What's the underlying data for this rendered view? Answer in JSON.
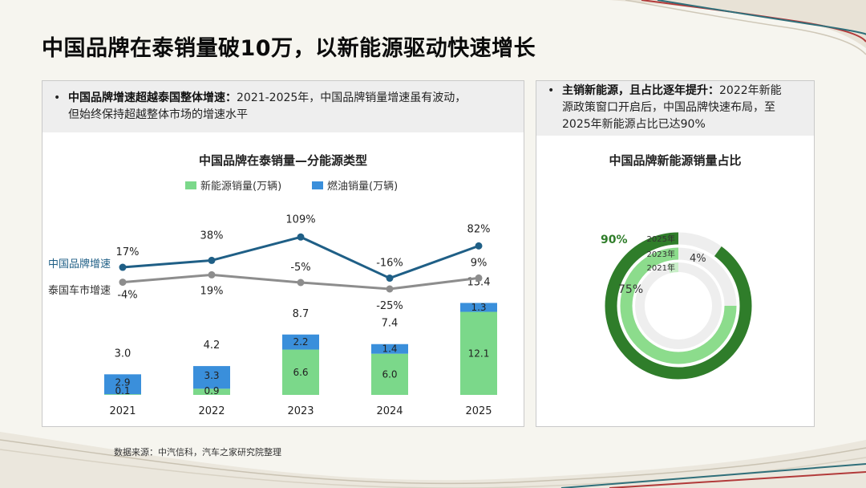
{
  "title": "中国品牌在泰销量破10万，以新能源驱动快速增长",
  "left_note": {
    "bold": "中国品牌增速超越泰国整体增速：",
    "text1": "2021-2025年，中国品牌销量增速虽有波动，",
    "text2": "但始终保持超越整体市场的增速水平"
  },
  "right_note": {
    "bold": "主销新能源，且占比逐年提升：",
    "text1": "2022年新能",
    "text2": "源政策窗口开启后，中国品牌快速布局，至",
    "text3": "2025年新能源占比已达90%"
  },
  "source": "数据来源：中汽信科，汽车之家研究院整理",
  "colors": {
    "nev": "#7bd88a",
    "fuel": "#3a8fdb",
    "brand_line": "#1f5f86",
    "thai_line": "#8d8d8d",
    "ring_2025": "#2f7d2a",
    "ring_2023": "#8cdc8c",
    "ring_2021": "#c9eec8",
    "ring_track": "#eeeeee"
  },
  "chart_data": [
    {
      "type": "bar",
      "title": "中国品牌在泰销量—分能源类型",
      "categories": [
        "2021",
        "2022",
        "2023",
        "2024",
        "2025"
      ],
      "stacked": true,
      "series": [
        {
          "name": "新能源销量(万辆)",
          "values": [
            0.1,
            0.9,
            6.6,
            6.0,
            12.1
          ],
          "labels": [
            "0.1",
            "0.9",
            "6.6",
            "6.0",
            "12.1"
          ]
        },
        {
          "name": "燃油销量(万辆)",
          "values": [
            2.9,
            3.3,
            2.2,
            1.4,
            1.3
          ],
          "labels": [
            "2.9",
            "3.3",
            "2.2",
            "1.4",
            "1.3"
          ]
        }
      ],
      "totals": [
        3.0,
        4.2,
        8.7,
        7.4,
        13.4
      ],
      "total_labels": [
        "3.0",
        "4.2",
        "8.7",
        "7.4",
        "13.4"
      ],
      "legend": "top",
      "grid": false
    },
    {
      "type": "line",
      "categories": [
        "2021",
        "2022",
        "2023",
        "2024",
        "2025"
      ],
      "series": [
        {
          "name": "中国品牌增速",
          "values": [
            17,
            38,
            109,
            -16,
            82
          ],
          "labels": [
            "17%",
            "38%",
            "109%",
            "-16%",
            "82%"
          ]
        },
        {
          "name": "泰国车市增速",
          "values": [
            -4,
            19,
            -5,
            -25,
            9
          ],
          "labels": [
            "-4%",
            "19%",
            "-5%",
            "-25%",
            "9%"
          ]
        }
      ],
      "unit": "%"
    },
    {
      "type": "pie",
      "subtype": "radial-bar",
      "title": "中国品牌新能源销量占比",
      "categories": [
        "2025年",
        "2023年",
        "2021年"
      ],
      "values": [
        90,
        75,
        4
      ],
      "labels": [
        "90%",
        "75%",
        "4%"
      ],
      "unit": "%"
    }
  ]
}
